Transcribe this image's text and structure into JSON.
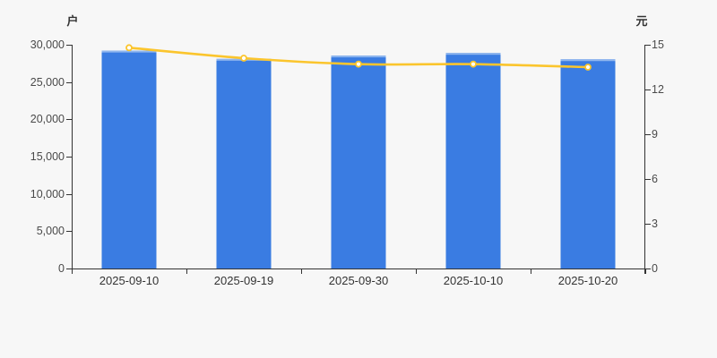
{
  "colors": {
    "background": "#f7f7f7",
    "bar": "#3a7ce2",
    "bar_cap": "#8fb6ee",
    "line": "#fbc52d",
    "marker_fill": "#ffffff",
    "axis_line": "#333333",
    "tick_text": "#4a4a4a"
  },
  "chart_data": {
    "type": "bar",
    "categories": [
      "2025-09-10",
      "2025-09-19",
      "2025-09-30",
      "2025-10-10",
      "2025-10-20"
    ],
    "series": [
      {
        "type": "bar",
        "y_axis": "left",
        "values": [
          29200,
          28100,
          28550,
          28900,
          28050
        ],
        "color": "#3a7ce2"
      },
      {
        "type": "line",
        "y_axis": "right",
        "values": [
          14.8,
          14.1,
          13.7,
          13.7,
          13.5
        ],
        "color": "#fbc52d",
        "smooth": true,
        "marker": "hollow-circle"
      }
    ],
    "left_axis": {
      "title": "户",
      "min": 0,
      "max": 30000,
      "ticks": [
        0,
        5000,
        10000,
        15000,
        20000,
        25000,
        30000
      ],
      "tick_labels": [
        "0",
        "5,000",
        "10,000",
        "15,000",
        "20,000",
        "25,000",
        "30,000"
      ]
    },
    "right_axis": {
      "title": "元",
      "min": 0,
      "max": 15,
      "ticks": [
        0,
        3,
        6,
        9,
        12,
        15
      ],
      "tick_labels": [
        "0",
        "3",
        "6",
        "9",
        "12",
        "15"
      ]
    },
    "x_axis": {
      "tick_labels": [
        "2025-09-10",
        "2025-09-19",
        "2025-09-30",
        "2025-10-10",
        "2025-10-20"
      ]
    },
    "grid": false,
    "legend": false
  }
}
